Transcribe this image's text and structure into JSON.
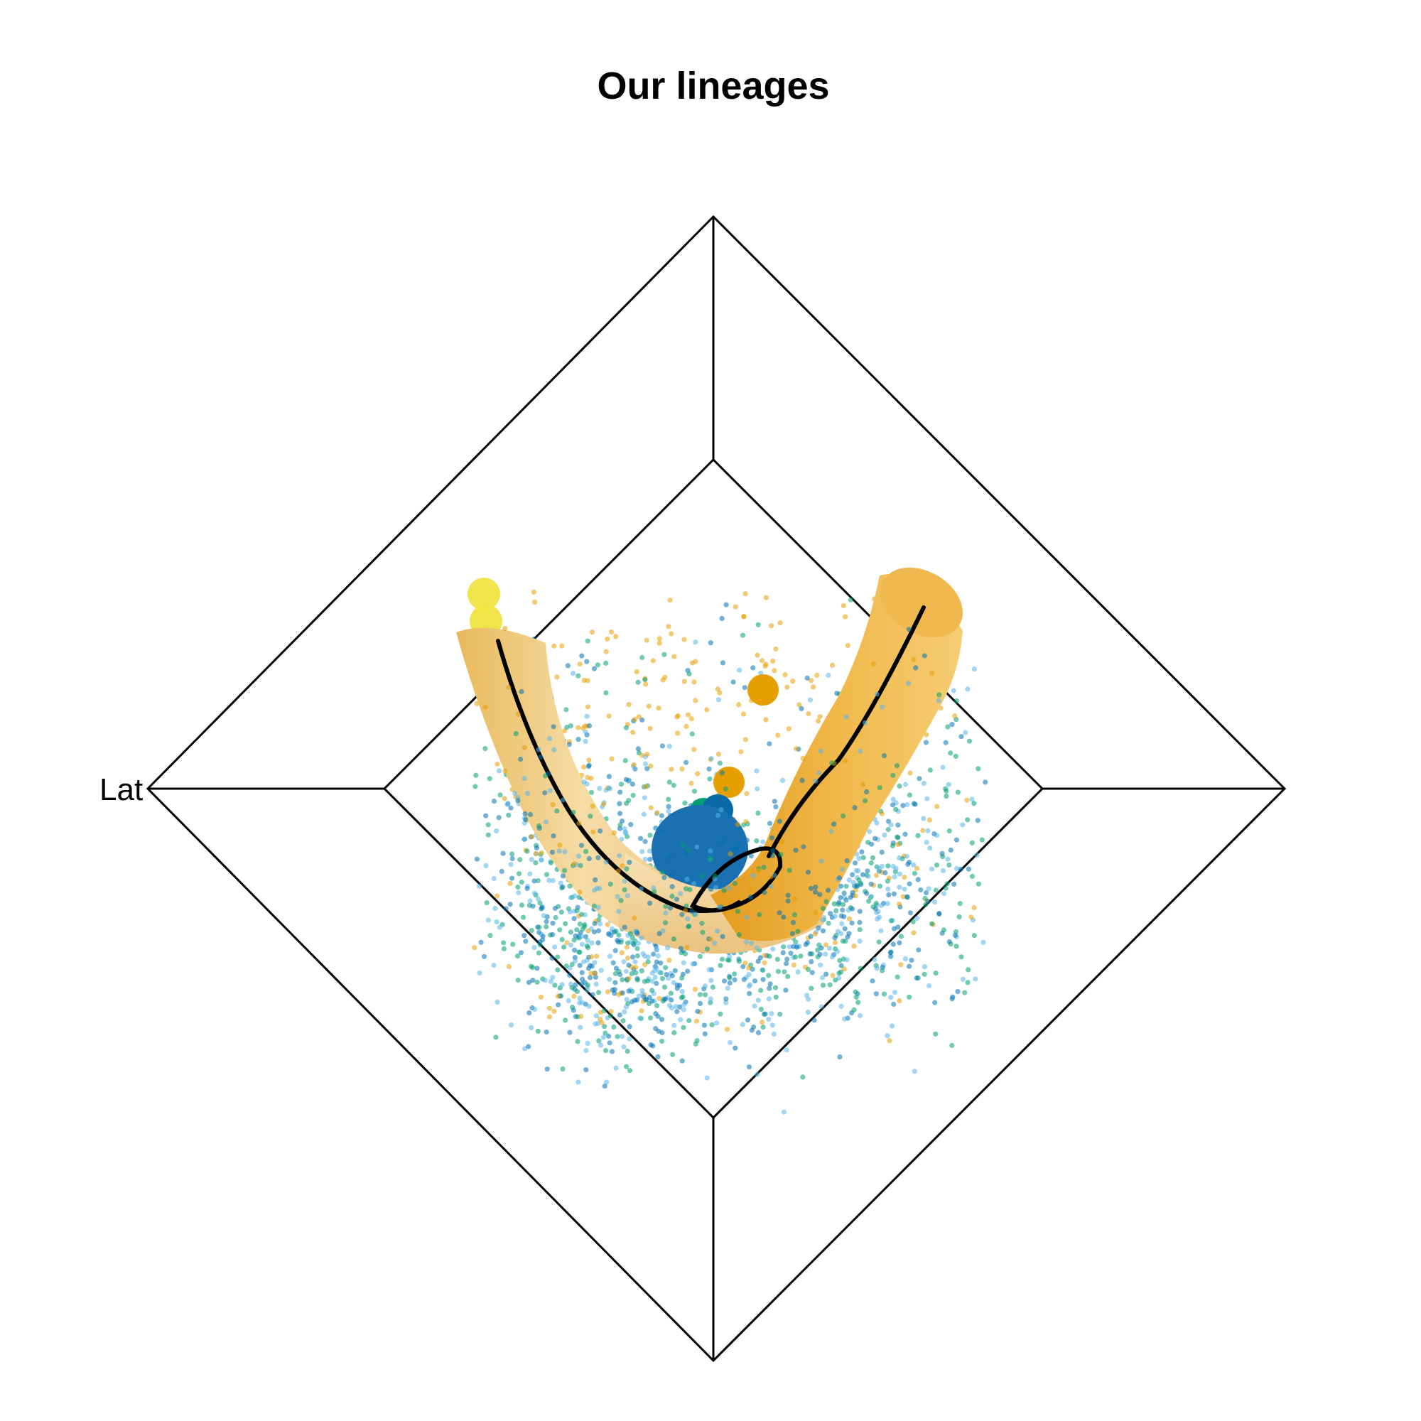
{
  "chart": {
    "title": "Our lineages",
    "axis_label": "Lat"
  },
  "chart_data": {
    "type": "scatter",
    "title": "Our lineages",
    "projection": "3d",
    "axis_labels": [
      "Lat"
    ],
    "grid": true,
    "legend": "none",
    "colors": {
      "orange": "#e69f00",
      "light_orange": "#f0c46a",
      "blue": "#0072b2",
      "sky_blue": "#56b4e9",
      "green": "#009e73",
      "yellow": "#f0e442",
      "curve": "#000000"
    },
    "series": [
      {
        "role": "cells",
        "colors": [
          "#0072b2",
          "#009e73",
          "#56b4e9",
          "#e69f00"
        ]
      },
      {
        "role": "cluster-centers",
        "colors": [
          "#f0e442",
          "#e69f00",
          "#009e73",
          "#0072b2",
          "#56b4e9"
        ]
      },
      {
        "role": "lineage-curve",
        "color": "#000000"
      },
      {
        "role": "lineage-tube",
        "color": "#e69f00"
      }
    ]
  }
}
